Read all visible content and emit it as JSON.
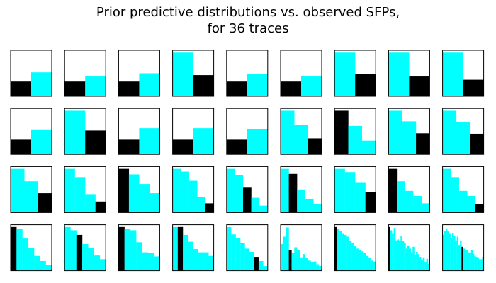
{
  "figure": {
    "title_line1": "Prior predictive distributions vs. observed SFPs,",
    "title_line2": "for 36 traces"
  },
  "colors": {
    "prior_bar": "#00ffff",
    "observed_bar": "#000000",
    "axes_frame": "#000000",
    "background": "#ffffff"
  },
  "chart_data": {
    "type": "bar",
    "layout": "small-multiples",
    "rows": 4,
    "cols": 9,
    "ticks_visible": false,
    "ylim": [
      0,
      1
    ],
    "panels": [
      {
        "bins": 2,
        "values": [
          0.32,
          0.52
        ],
        "observed_bin": 0
      },
      {
        "bins": 2,
        "values": [
          0.32,
          0.43
        ],
        "observed_bin": 0
      },
      {
        "bins": 2,
        "values": [
          0.32,
          0.5
        ],
        "observed_bin": 0
      },
      {
        "bins": 2,
        "values": [
          0.95,
          0.46
        ],
        "observed_bin": 1
      },
      {
        "bins": 2,
        "values": [
          0.32,
          0.48
        ],
        "observed_bin": 0
      },
      {
        "bins": 2,
        "values": [
          0.32,
          0.43
        ],
        "observed_bin": 0
      },
      {
        "bins": 2,
        "values": [
          0.95,
          0.48
        ],
        "observed_bin": 1
      },
      {
        "bins": 2,
        "values": [
          0.95,
          0.43
        ],
        "observed_bin": 1
      },
      {
        "bins": 2,
        "values": [
          0.95,
          0.36
        ],
        "observed_bin": 1
      },
      {
        "bins": 2,
        "values": [
          0.32,
          0.53
        ],
        "observed_bin": 0
      },
      {
        "bins": 2,
        "values": [
          0.95,
          0.52
        ],
        "observed_bin": 1
      },
      {
        "bins": 2,
        "values": [
          0.32,
          0.57
        ],
        "observed_bin": 0
      },
      {
        "bins": 2,
        "values": [
          0.32,
          0.57
        ],
        "observed_bin": 0
      },
      {
        "bins": 2,
        "values": [
          0.32,
          0.55
        ],
        "observed_bin": 0
      },
      {
        "bins": 3,
        "values": [
          0.95,
          0.64,
          0.35
        ],
        "observed_bin": 2
      },
      {
        "bins": 3,
        "values": [
          0.95,
          0.62,
          0.3
        ],
        "observed_bin": 0
      },
      {
        "bins": 3,
        "values": [
          0.95,
          0.72,
          0.46
        ],
        "observed_bin": 2
      },
      {
        "bins": 3,
        "values": [
          0.95,
          0.7,
          0.45
        ],
        "observed_bin": 2
      },
      {
        "bins": 3,
        "values": [
          0.95,
          0.68,
          0.42
        ],
        "observed_bin": 2
      },
      {
        "bins": 4,
        "values": [
          0.95,
          0.77,
          0.4,
          0.24
        ],
        "observed_bin": 3
      },
      {
        "bins": 4,
        "values": [
          0.95,
          0.83,
          0.62,
          0.42
        ],
        "observed_bin": 0
      },
      {
        "bins": 5,
        "values": [
          0.95,
          0.89,
          0.69,
          0.34,
          0.2
        ],
        "observed_bin": 4
      },
      {
        "bins": 5,
        "values": [
          0.95,
          0.82,
          0.54,
          0.32,
          0.15
        ],
        "observed_bin": 2
      },
      {
        "bins": 5,
        "values": [
          0.95,
          0.84,
          0.5,
          0.3,
          0.18
        ],
        "observed_bin": 1
      },
      {
        "bins": 4,
        "values": [
          0.95,
          0.88,
          0.66,
          0.44
        ],
        "observed_bin": 3
      },
      {
        "bins": 5,
        "values": [
          0.95,
          0.68,
          0.47,
          0.36,
          0.2
        ],
        "observed_bin": 0
      },
      {
        "bins": 5,
        "values": [
          0.95,
          0.77,
          0.47,
          0.36,
          0.19
        ],
        "observed_bin": 4
      },
      {
        "bins": 7,
        "values": [
          0.95,
          0.91,
          0.7,
          0.49,
          0.32,
          0.21,
          0.12
        ],
        "observed_bin": 0
      },
      {
        "bins": 7,
        "values": [
          0.95,
          0.88,
          0.78,
          0.58,
          0.49,
          0.33,
          0.25
        ],
        "observed_bin": 2
      },
      {
        "bins": 7,
        "values": [
          0.95,
          0.91,
          0.88,
          0.62,
          0.4,
          0.38,
          0.31
        ],
        "observed_bin": 0
      },
      {
        "bins": 8,
        "values": [
          0.95,
          0.95,
          0.78,
          0.63,
          0.47,
          0.4,
          0.4,
          0.32
        ],
        "observed_bin": 1
      },
      {
        "bins": 9,
        "values": [
          0.95,
          0.79,
          0.71,
          0.6,
          0.48,
          0.41,
          0.3,
          0.21,
          0.1
        ],
        "observed_bin": 6
      },
      {
        "bins": 15,
        "values": [
          0.58,
          0.74,
          0.94,
          0.45,
          0.38,
          0.51,
          0.44,
          0.29,
          0.36,
          0.27,
          0.22,
          0.18,
          0.2,
          0.14,
          0.1
        ],
        "observed_bin": 3
      },
      {
        "bins": 17,
        "values": [
          0.95,
          0.9,
          0.86,
          0.8,
          0.78,
          0.74,
          0.65,
          0.6,
          0.54,
          0.48,
          0.45,
          0.42,
          0.38,
          0.32,
          0.28,
          0.22,
          0.2
        ],
        "observed_bin": 0
      },
      {
        "bins": 24,
        "values": [
          0.95,
          0.88,
          0.8,
          0.93,
          0.66,
          0.68,
          0.65,
          0.75,
          0.64,
          0.6,
          0.48,
          0.55,
          0.48,
          0.4,
          0.52,
          0.34,
          0.41,
          0.36,
          0.3,
          0.24,
          0.29,
          0.18,
          0.26,
          0.15
        ],
        "observed_bin": 0
      },
      {
        "bins": 26,
        "values": [
          0.78,
          0.86,
          0.92,
          0.86,
          0.8,
          0.7,
          0.82,
          0.76,
          0.66,
          0.74,
          0.56,
          0.66,
          0.52,
          0.48,
          0.46,
          0.45,
          0.4,
          0.38,
          0.44,
          0.37,
          0.32,
          0.3,
          0.28,
          0.25,
          0.25,
          0.3
        ],
        "observed_bin": 12
      }
    ]
  }
}
